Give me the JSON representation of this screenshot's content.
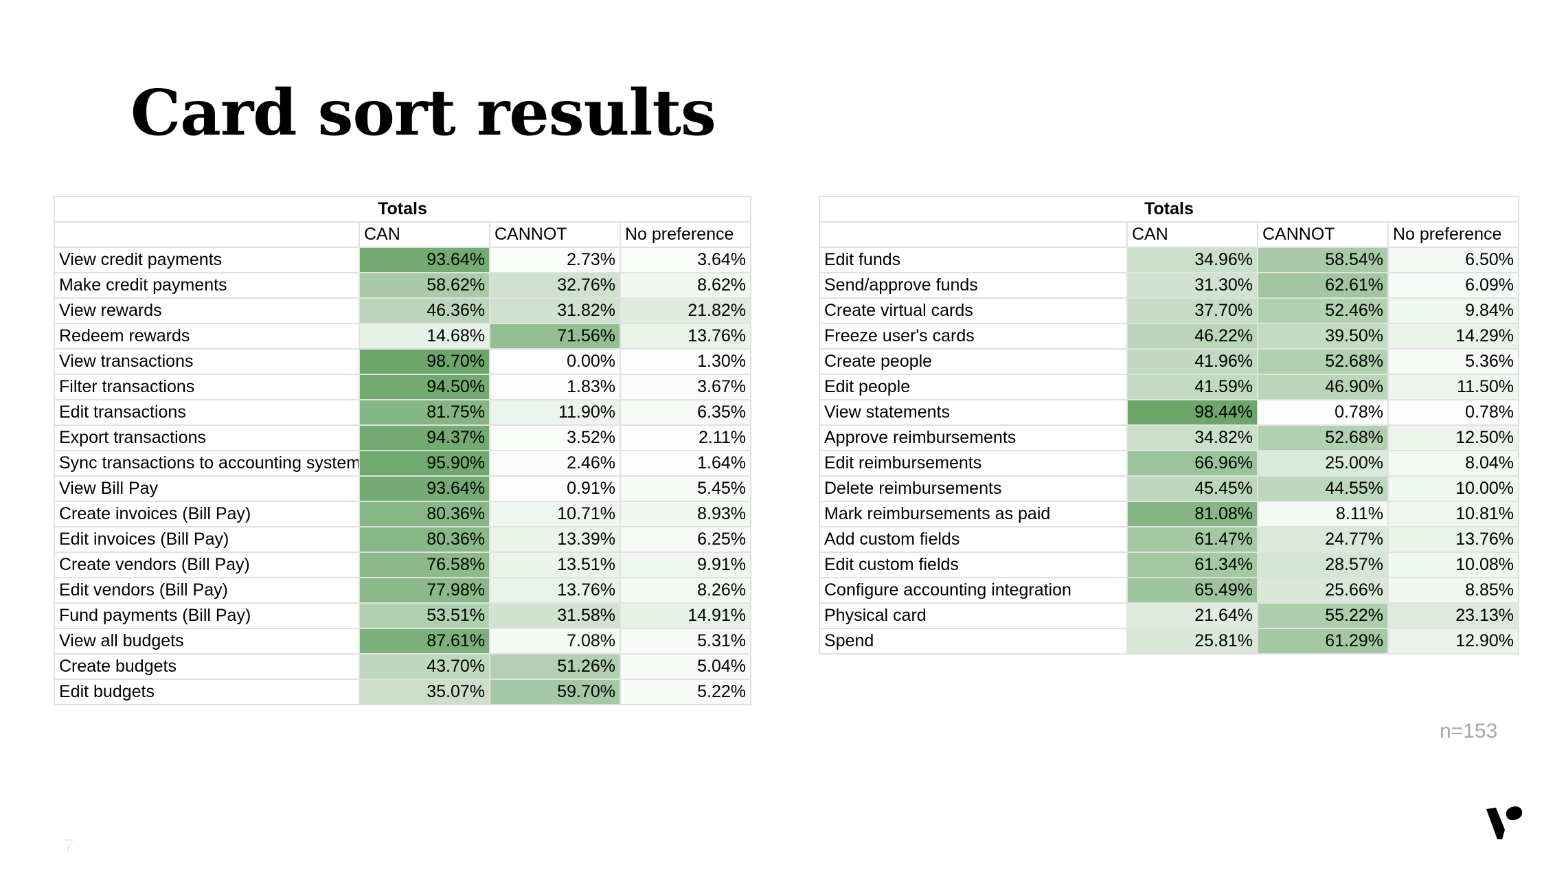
{
  "title": "Card sort results",
  "tables": [
    {
      "group_header": "Totals",
      "columns": [
        "",
        "CAN",
        "CANNOT",
        "No preference"
      ],
      "rows": [
        [
          "View credit payments",
          "93.64%",
          "2.73%",
          "3.64%"
        ],
        [
          "Make credit payments",
          "58.62%",
          "32.76%",
          "8.62%"
        ],
        [
          "View rewards",
          "46.36%",
          "31.82%",
          "21.82%"
        ],
        [
          "Redeem rewards",
          "14.68%",
          "71.56%",
          "13.76%"
        ],
        [
          "View transactions",
          "98.70%",
          "0.00%",
          "1.30%"
        ],
        [
          "Filter transactions",
          "94.50%",
          "1.83%",
          "3.67%"
        ],
        [
          "Edit transactions",
          "81.75%",
          "11.90%",
          "6.35%"
        ],
        [
          "Export transactions",
          "94.37%",
          "3.52%",
          "2.11%"
        ],
        [
          "Sync transactions to accounting system",
          "95.90%",
          "2.46%",
          "1.64%"
        ],
        [
          "View Bill Pay",
          "93.64%",
          "0.91%",
          "5.45%"
        ],
        [
          "Create invoices (Bill Pay)",
          "80.36%",
          "10.71%",
          "8.93%"
        ],
        [
          "Edit invoices (Bill Pay)",
          "80.36%",
          "13.39%",
          "6.25%"
        ],
        [
          "Create vendors (Bill Pay)",
          "76.58%",
          "13.51%",
          "9.91%"
        ],
        [
          "Edit vendors (Bill Pay)",
          "77.98%",
          "13.76%",
          "8.26%"
        ],
        [
          "Fund payments (Bill Pay)",
          "53.51%",
          "31.58%",
          "14.91%"
        ],
        [
          "View all budgets",
          "87.61%",
          "7.08%",
          "5.31%"
        ],
        [
          "Create budgets",
          "43.70%",
          "51.26%",
          "5.04%"
        ],
        [
          "Edit budgets",
          "35.07%",
          "59.70%",
          "5.22%"
        ]
      ]
    },
    {
      "group_header": "Totals",
      "columns": [
        "",
        "CAN",
        "CANNOT",
        "No preference"
      ],
      "rows": [
        [
          "Edit funds",
          "34.96%",
          "58.54%",
          "6.50%"
        ],
        [
          "Send/approve funds",
          "31.30%",
          "62.61%",
          "6.09%"
        ],
        [
          "Create virtual cards",
          "37.70%",
          "52.46%",
          "9.84%"
        ],
        [
          "Freeze user's cards",
          "46.22%",
          "39.50%",
          "14.29%"
        ],
        [
          "Create people",
          "41.96%",
          "52.68%",
          "5.36%"
        ],
        [
          "Edit people",
          "41.59%",
          "46.90%",
          "11.50%"
        ],
        [
          "View statements",
          "98.44%",
          "0.78%",
          "0.78%"
        ],
        [
          "Approve reimbursements",
          "34.82%",
          "52.68%",
          "12.50%"
        ],
        [
          "Edit reimbursements",
          "66.96%",
          "25.00%",
          "8.04%"
        ],
        [
          "Delete reimbursements",
          "45.45%",
          "44.55%",
          "10.00%"
        ],
        [
          "Mark reimbursements as paid",
          "81.08%",
          "8.11%",
          "10.81%"
        ],
        [
          "Add custom fields",
          "61.47%",
          "24.77%",
          "13.76%"
        ],
        [
          "Edit custom fields",
          "61.34%",
          "28.57%",
          "10.08%"
        ],
        [
          "Configure accounting integration",
          "65.49%",
          "25.66%",
          "8.85%"
        ],
        [
          "Physical card",
          "21.64%",
          "55.22%",
          "23.13%"
        ],
        [
          "Spend",
          "25.81%",
          "61.29%",
          "12.90%"
        ]
      ]
    }
  ],
  "footnote": "n=153",
  "page_number": "7",
  "colors": {
    "heat_min": "#ffffff",
    "heat_max": "#6aa568",
    "grid_line": "#e1e1e1",
    "footnote_text": "#a6a6a6"
  }
}
